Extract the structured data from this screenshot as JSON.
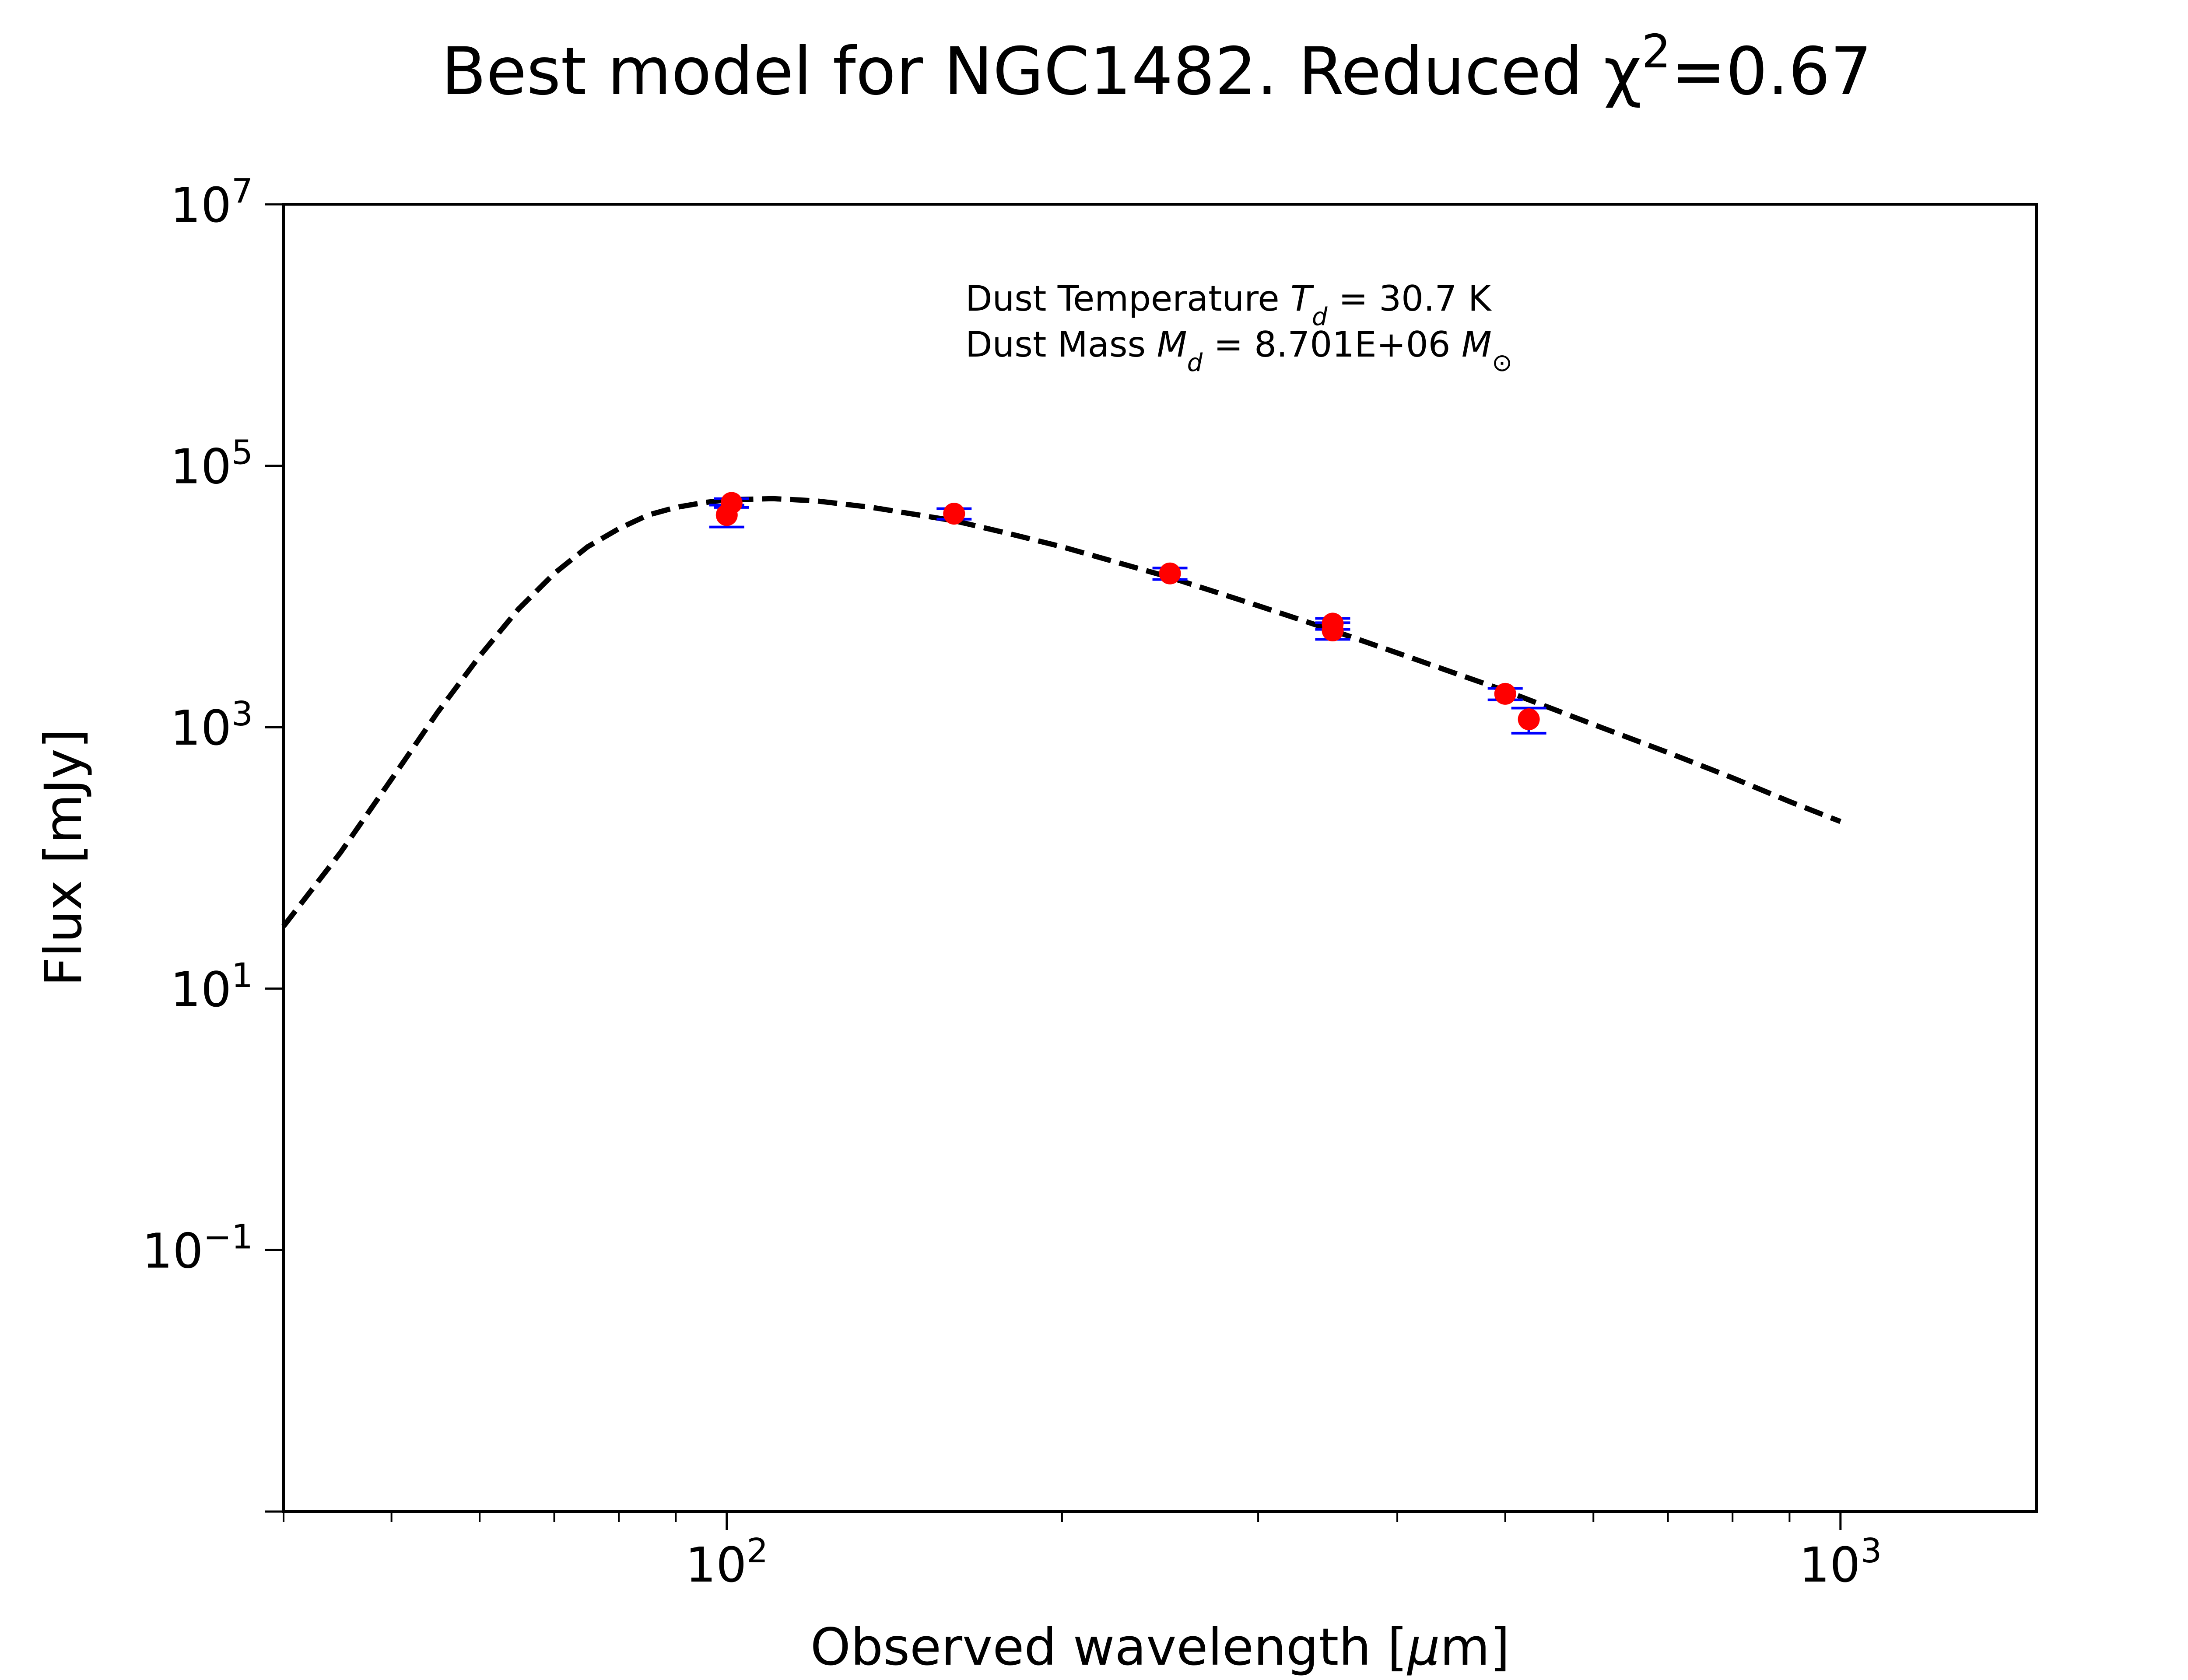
{
  "chart_data": {
    "type": "scatter",
    "title": "Best model for NGC1482. Reduced χ²=0.67",
    "title_parts": {
      "main": "Best model for NGC1482. Reduced χ",
      "sup": "2",
      "tail": "=0.67"
    },
    "xlabel": "Observed wavelength [μm]",
    "xlabel_parts": {
      "pre": "Observed wavelength [",
      "mu": "μ",
      "post": "m]"
    },
    "ylabel": "Flux [mJy]",
    "x_scale": "log",
    "y_scale": "log",
    "xlim": [
      40,
      1500
    ],
    "ylim": [
      0.001,
      10000000
    ],
    "grid": false,
    "x_ticks": [
      {
        "value": 100,
        "base": "10",
        "exp": "2"
      },
      {
        "value": 1000,
        "base": "10",
        "exp": "3"
      }
    ],
    "y_ticks": [
      {
        "value": 0.1,
        "base": "10",
        "exp": "−1"
      },
      {
        "value": 10,
        "base": "10",
        "exp": "1"
      },
      {
        "value": 1000,
        "base": "10",
        "exp": "3"
      },
      {
        "value": 100000,
        "base": "10",
        "exp": "5"
      },
      {
        "value": 10000000,
        "base": "10",
        "exp": "7"
      }
    ],
    "annotations": {
      "temperature": {
        "prefix": "Dust Temperature ",
        "sym": "T",
        "sub": "d",
        "suffix": " = 30.7 K"
      },
      "mass": {
        "prefix": "Dust Mass ",
        "sym": "M",
        "sub": "d",
        "suffix": " = 8.701E+06 ",
        "unit_sym": "M",
        "unit_sub": "⊙"
      }
    },
    "series": [
      {
        "kind": "model",
        "style": "dashed",
        "color": "#000000",
        "x": [
          40,
          45,
          50,
          55,
          60,
          65,
          70,
          75,
          80,
          85,
          90,
          95,
          100,
          110,
          120,
          135,
          160,
          180,
          200,
          250,
          300,
          350,
          400,
          450,
          500,
          600,
          700,
          800,
          900,
          1000
        ],
        "y": [
          30,
          110,
          400,
          1300,
          3500,
          8000,
          15000,
          24000,
          33000,
          42000,
          48000,
          52000,
          55000,
          56000,
          54000,
          48000,
          38000,
          30000,
          24000,
          14000,
          8500,
          5500,
          3700,
          2600,
          1900,
          1050,
          640,
          410,
          270,
          190
        ]
      },
      {
        "kind": "observed",
        "color": "#ff0000",
        "errorbar_color": "#0000ff",
        "x": [
          100,
          101,
          160,
          250,
          350,
          350,
          500,
          525
        ],
        "y": [
          42000,
          52000,
          43000,
          15000,
          5500,
          6200,
          1800,
          1150
        ],
        "yerr_low": [
          8000,
          4000,
          4000,
          1500,
          800,
          600,
          180,
          250
        ],
        "yerr_high": [
          8000,
          4000,
          4000,
          1500,
          800,
          600,
          180,
          250
        ]
      }
    ]
  }
}
